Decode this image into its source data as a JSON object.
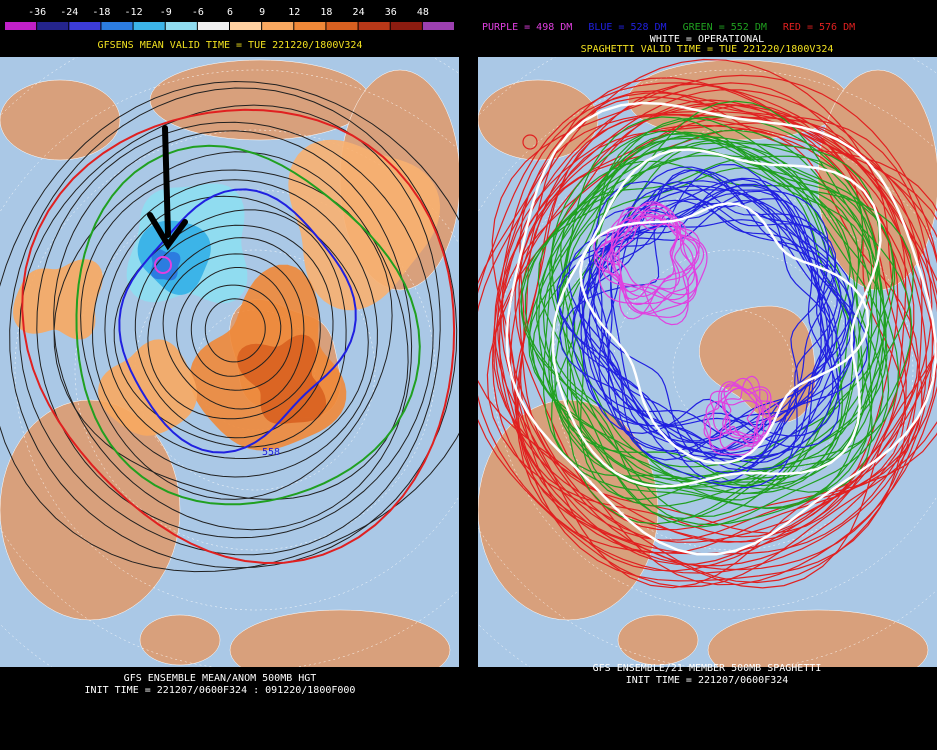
{
  "left_panel": {
    "colorbar": {
      "labels": [
        -36,
        -24,
        -18,
        -12,
        -9,
        -6,
        6,
        9,
        12,
        18,
        24,
        36,
        48
      ],
      "colors": [
        "#c020c8",
        "#24248c",
        "#3c3cd8",
        "#2c7ce0",
        "#3cb4e8",
        "#90dcf0",
        "#f0f0f0",
        "#ffd0a0",
        "#f8a860",
        "#f08838",
        "#d86020",
        "#b83818",
        "#8c1c10",
        "#9c40b0"
      ]
    },
    "title": "GFSENS MEAN VALID TIME = TUE 221220/1800V324",
    "footer_line1": "GFS ENSEMBLE MEAN/ANOM 500MB HGT",
    "footer_line2": "INIT TIME = 221207/0600F324 : 091220/1800F000",
    "contour_label": "558"
  },
  "right_panel": {
    "legend": [
      {
        "text": "PURPLE = 498 DM",
        "color": "#e040e0"
      },
      {
        "text": "BLUE = 528 DM",
        "color": "#2020e0"
      },
      {
        "text": "GREEN = 552 DM",
        "color": "#20a020"
      },
      {
        "text": "RED = 576 DM",
        "color": "#e02020"
      }
    ],
    "legend_white": "WHITE = OPERATIONAL",
    "title": "SPAGHETTI VALID TIME = TUE 221220/1800V324",
    "footer_line1": "GFS ENSEMBLE/21 MEMBER 500MB SPAGHETTI",
    "footer_line2": "INIT TIME = 221207/0600F324"
  }
}
